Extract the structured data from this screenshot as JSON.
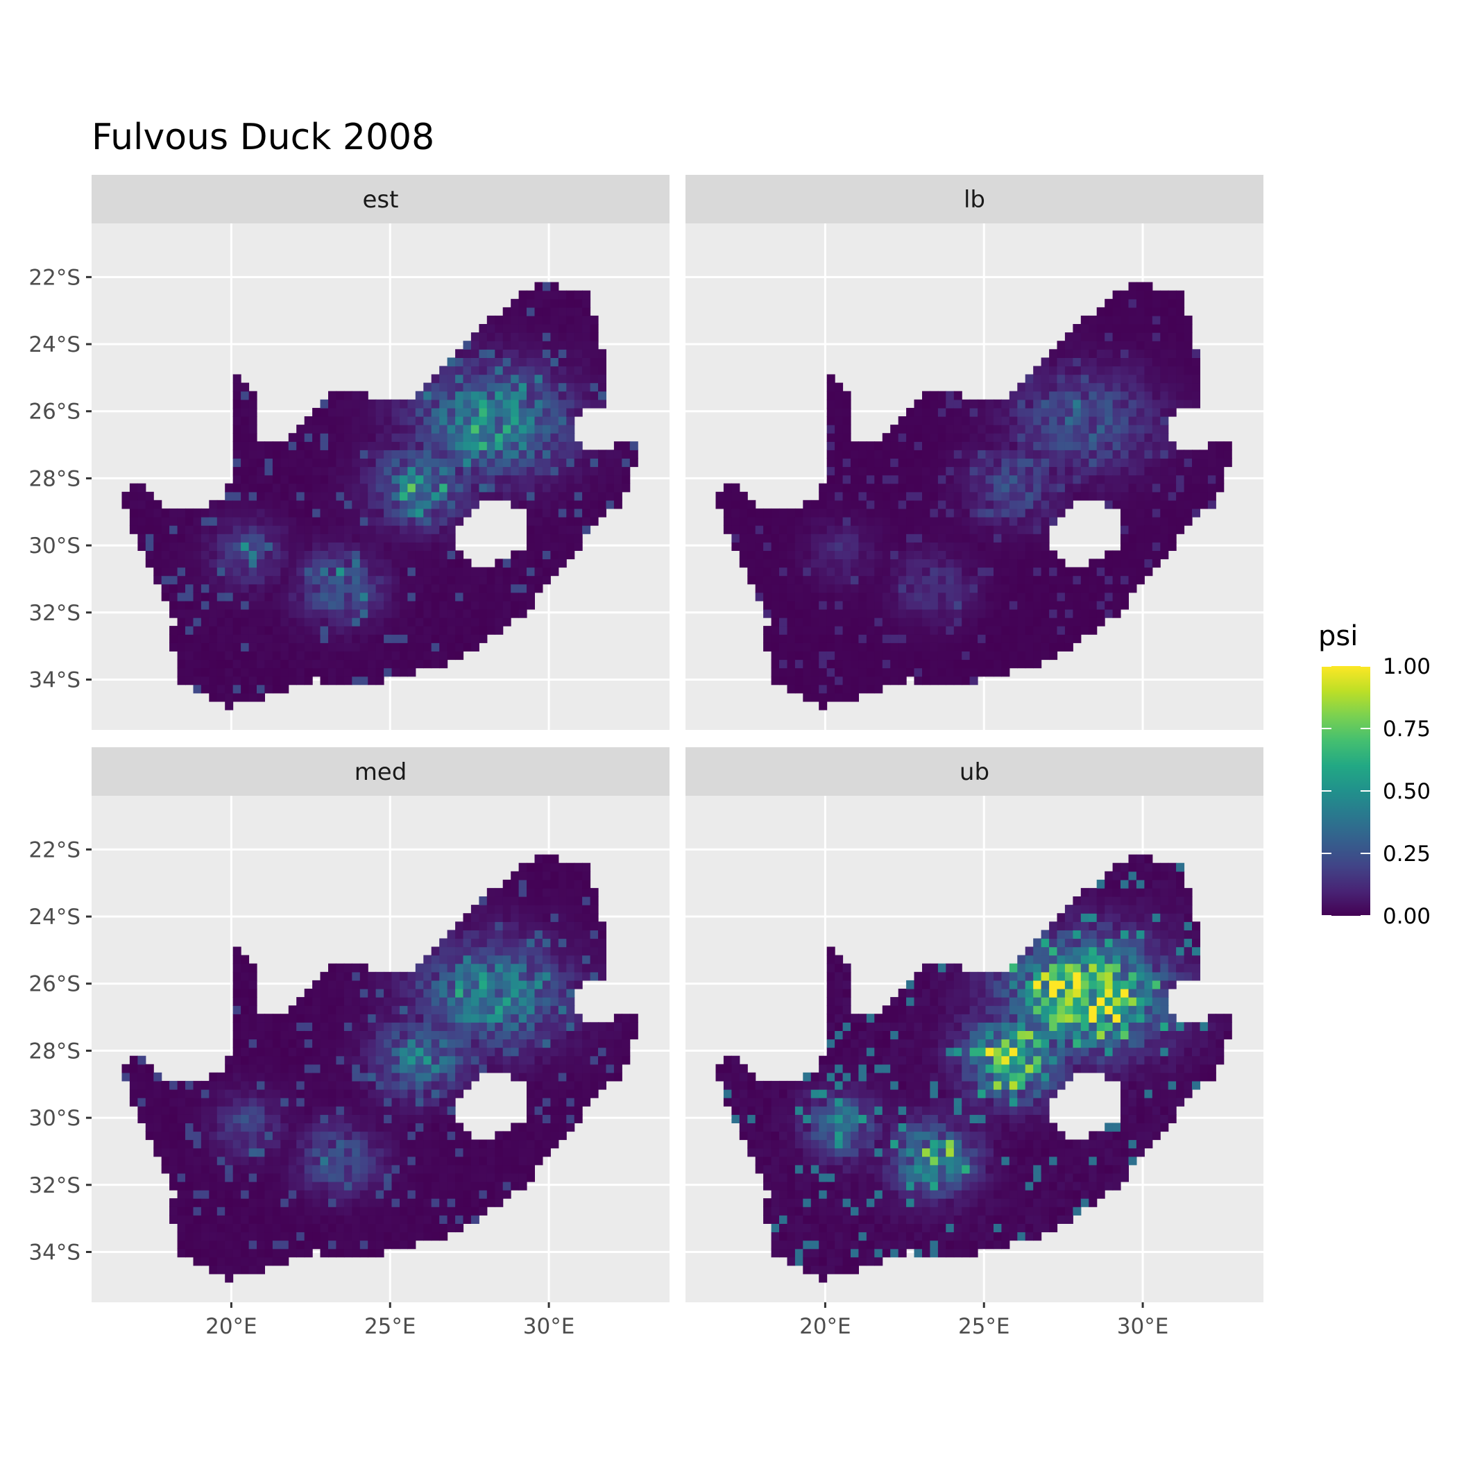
{
  "title": "Fulvous Duck 2008",
  "colors": {
    "panel_bg": "#EBEBEB",
    "strip_bg": "#D9D9D9",
    "grid": "#FFFFFF",
    "tick_text": "#4D4D4D",
    "low": "#440154",
    "high": "#FDE725"
  },
  "chart_data": {
    "type": "heatmap",
    "title": "Fulvous Duck 2008",
    "xlabel": "",
    "ylabel": "",
    "xlim": [
      15.6,
      33.8
    ],
    "ylim": [
      -35.5,
      -20.4
    ],
    "x_ticks": [
      20,
      25,
      30
    ],
    "x_tick_labels": [
      "20°E",
      "25°E",
      "30°E"
    ],
    "y_ticks": [
      -22,
      -24,
      -26,
      -28,
      -30,
      -32,
      -34
    ],
    "y_tick_labels": [
      "22°S",
      "24°S",
      "26°S",
      "28°S",
      "30°S",
      "32°S",
      "34°S"
    ],
    "panels": [
      {
        "label": "est",
        "hotspot_max": 0.55
      },
      {
        "label": "lb",
        "hotspot_max": 0.28
      },
      {
        "label": "med",
        "hotspot_max": 0.5
      },
      {
        "label": "ub",
        "hotspot_max": 0.95
      }
    ],
    "legend": {
      "title": "psi",
      "position": "right",
      "range": [
        0,
        1
      ],
      "breaks": [
        0,
        0.25,
        0.5,
        0.75,
        1
      ],
      "break_labels": [
        "0.00",
        "0.25",
        "0.50",
        "0.75",
        "1.00"
      ],
      "colormap": "viridis"
    },
    "grid": true
  }
}
